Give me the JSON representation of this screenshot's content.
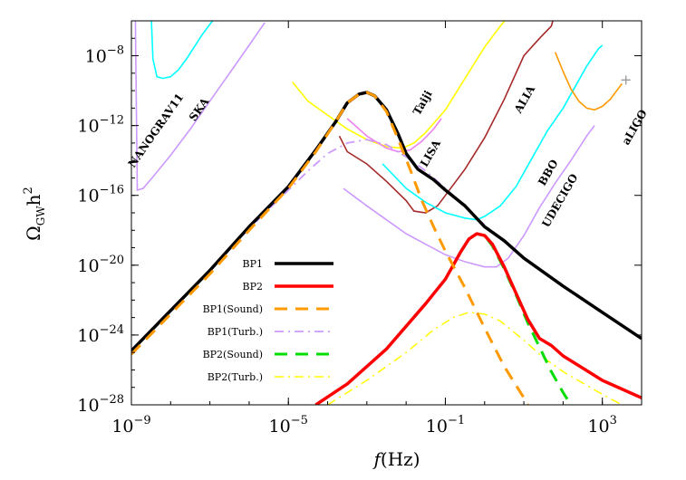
{
  "chart_data": {
    "type": "line",
    "xlabel_var": "f",
    "xlabel_unit": "(Hz)",
    "ylabel_main": "Ω",
    "ylabel_sub": "GW",
    "ylabel_tail": "h",
    "ylabel_sup": "2",
    "xscale": "log",
    "yscale": "log",
    "xlim_log10": [
      -9,
      4
    ],
    "ylim_log10": [
      -28,
      -6
    ],
    "xticks": [
      {
        "base": "10",
        "exp": "−9",
        "log10": -9
      },
      {
        "base": "10",
        "exp": "−5",
        "log10": -5
      },
      {
        "base": "10",
        "exp": "−1",
        "log10": -1
      },
      {
        "base": "10",
        "exp": "3",
        "log10": 3
      }
    ],
    "yticks": [
      {
        "base": "10",
        "exp": "−8",
        "log10": -8
      },
      {
        "base": "10",
        "exp": "−12",
        "log10": -12
      },
      {
        "base": "10",
        "exp": "−16",
        "log10": -16
      },
      {
        "base": "10",
        "exp": "−20",
        "log10": -20
      },
      {
        "base": "10",
        "exp": "−24",
        "log10": -24
      },
      {
        "base": "10",
        "exp": "−28",
        "log10": -28
      }
    ],
    "series": [
      {
        "name": "BP1",
        "color": "#000000",
        "style": "solid",
        "width": 3.5,
        "points_log10": [
          [
            -9,
            -24.9
          ],
          [
            -8,
            -22.6
          ],
          [
            -7,
            -20.3
          ],
          [
            -6,
            -17.8
          ],
          [
            -5,
            -15.5
          ],
          [
            -4.3,
            -13.4
          ],
          [
            -3.8,
            -11.8
          ],
          [
            -3.5,
            -10.7
          ],
          [
            -3.2,
            -10.2
          ],
          [
            -3,
            -10.1
          ],
          [
            -2.8,
            -10.3
          ],
          [
            -2.5,
            -11.1
          ],
          [
            -2.2,
            -12.5
          ],
          [
            -2,
            -13.6
          ],
          [
            -1.7,
            -14.5
          ],
          [
            -1.3,
            -15.1
          ],
          [
            -1,
            -15.7
          ],
          [
            -0.5,
            -16.6
          ],
          [
            0,
            -17.8
          ],
          [
            0.5,
            -18.6
          ],
          [
            1,
            -19.6
          ],
          [
            2,
            -21.2
          ],
          [
            3,
            -22.7
          ],
          [
            4,
            -24.2
          ]
        ]
      },
      {
        "name": "BP2",
        "color": "#ff0000",
        "style": "solid",
        "width": 3.5,
        "points_log10": [
          [
            -4.3,
            -28
          ],
          [
            -3.5,
            -26.8
          ],
          [
            -2.5,
            -24.8
          ],
          [
            -1.5,
            -22.2
          ],
          [
            -1,
            -20.8
          ],
          [
            -0.6,
            -19.2
          ],
          [
            -0.4,
            -18.5
          ],
          [
            -0.2,
            -18.2
          ],
          [
            0,
            -18.3
          ],
          [
            0.2,
            -18.8
          ],
          [
            0.5,
            -20.1
          ],
          [
            0.8,
            -21.6
          ],
          [
            1.1,
            -23.1
          ],
          [
            1.4,
            -24.2
          ],
          [
            1.7,
            -24.6
          ],
          [
            2,
            -25.2
          ],
          [
            3,
            -26.6
          ],
          [
            4,
            -27.6
          ]
        ]
      },
      {
        "name": "BP1(Sound)",
        "color": "#ff9900",
        "style": "dashed",
        "width": 3,
        "points_log10": [
          [
            -9,
            -25.1
          ],
          [
            -8,
            -22.8
          ],
          [
            -7,
            -20.5
          ],
          [
            -6,
            -18
          ],
          [
            -5,
            -15.6
          ],
          [
            -4.3,
            -13.5
          ],
          [
            -3.8,
            -11.8
          ],
          [
            -3.5,
            -10.7
          ],
          [
            -3.2,
            -10.2
          ],
          [
            -3,
            -10.1
          ],
          [
            -2.8,
            -10.3
          ],
          [
            -2.5,
            -11.2
          ],
          [
            -2.2,
            -12.8
          ],
          [
            -1.9,
            -14.5
          ],
          [
            -1.6,
            -16.3
          ],
          [
            -1.3,
            -17.8
          ],
          [
            -1,
            -19.2
          ],
          [
            -0.5,
            -21.3
          ],
          [
            0,
            -23.6
          ],
          [
            0.5,
            -25.8
          ],
          [
            1,
            -27.6
          ],
          [
            1.1,
            -28
          ]
        ]
      },
      {
        "name": "BP1(Turb.)",
        "color": "#cc99ff",
        "style": "dashdot",
        "width": 1.8,
        "points_log10": [
          [
            -9,
            -24.9
          ],
          [
            -8,
            -22.6
          ],
          [
            -7,
            -20.3
          ],
          [
            -6,
            -17.9
          ],
          [
            -5,
            -15.7
          ],
          [
            -4.5,
            -14.6
          ],
          [
            -4,
            -13.6
          ],
          [
            -3.5,
            -13
          ],
          [
            -3,
            -12.8
          ],
          [
            -2.5,
            -13.1
          ],
          [
            -2,
            -13.8
          ],
          [
            -1.5,
            -14.6
          ],
          [
            -1,
            -15.6
          ],
          [
            -0.5,
            -16.6
          ],
          [
            0,
            -17.7
          ],
          [
            0.5,
            -18.6
          ],
          [
            1,
            -19.6
          ],
          [
            2,
            -21.2
          ],
          [
            3,
            -22.7
          ],
          [
            4,
            -24.2
          ]
        ]
      },
      {
        "name": "BP2(Sound)",
        "color": "#00dd00",
        "style": "dashed",
        "width": 3,
        "points_log10": [
          [
            -4.3,
            -28
          ],
          [
            -3.5,
            -26.8
          ],
          [
            -2.5,
            -24.8
          ],
          [
            -1.5,
            -22.2
          ],
          [
            -1,
            -20.8
          ],
          [
            -0.6,
            -19.2
          ],
          [
            -0.4,
            -18.5
          ],
          [
            -0.2,
            -18.2
          ],
          [
            0,
            -18.3
          ],
          [
            0.2,
            -18.9
          ],
          [
            0.5,
            -20.2
          ],
          [
            0.8,
            -21.7
          ],
          [
            1.1,
            -23.3
          ],
          [
            1.4,
            -24.7
          ],
          [
            1.7,
            -26.1
          ],
          [
            2,
            -27.3
          ],
          [
            2.2,
            -28
          ]
        ]
      },
      {
        "name": "BP2(Turb.)",
        "color": "#ffff00",
        "style": "dashdot",
        "width": 1.5,
        "points_log10": [
          [
            -4,
            -28
          ],
          [
            -3,
            -26.6
          ],
          [
            -2,
            -25
          ],
          [
            -1.3,
            -23.7
          ],
          [
            -0.8,
            -23
          ],
          [
            -0.4,
            -22.7
          ],
          [
            0,
            -22.8
          ],
          [
            0.4,
            -23.2
          ],
          [
            1,
            -24.3
          ],
          [
            1.5,
            -25.3
          ],
          [
            2,
            -26.1
          ],
          [
            3,
            -27.4
          ],
          [
            3.5,
            -28
          ]
        ]
      }
    ],
    "sensitivity_curves": [
      {
        "name": "NANOGRAV11",
        "color": "#00ffff",
        "points_log10": [
          [
            -8.5,
            -5.5
          ],
          [
            -8.45,
            -8.2
          ],
          [
            -8.35,
            -9.2
          ],
          [
            -8.2,
            -9.3
          ],
          [
            -8,
            -9.2
          ],
          [
            -7.8,
            -8.8
          ],
          [
            -7.6,
            -8.2
          ],
          [
            -7.4,
            -7.5
          ],
          [
            -7.2,
            -6.8
          ],
          [
            -7.0,
            -6.2
          ],
          [
            -6.9,
            -5.9
          ]
        ]
      },
      {
        "name": "SKA",
        "color": "#cc99ff",
        "points_log10": [
          [
            -8.9,
            -5.5
          ],
          [
            -8.85,
            -15.7
          ],
          [
            -8.7,
            -15.6
          ],
          [
            -8.4,
            -14.8
          ],
          [
            -8,
            -13.7
          ],
          [
            -7.5,
            -12.2
          ],
          [
            -7,
            -10.6
          ],
          [
            -6.5,
            -9
          ],
          [
            -6,
            -7.4
          ],
          [
            -5.6,
            -6.1
          ]
        ]
      },
      {
        "name": "Taiji",
        "color": "#ffff00",
        "points_log10": [
          [
            -4.9,
            -9.5
          ],
          [
            -4.5,
            -10.6
          ],
          [
            -4,
            -11.4
          ],
          [
            -3.5,
            -12.2
          ],
          [
            -3,
            -12.8
          ],
          [
            -2.5,
            -13.2
          ],
          [
            -2.1,
            -13.3
          ],
          [
            -1.8,
            -13
          ],
          [
            -1.5,
            -12.4
          ],
          [
            -1,
            -11.1
          ],
          [
            -0.5,
            -9.3
          ],
          [
            0,
            -7.5
          ],
          [
            0.4,
            -6.3
          ],
          [
            0.7,
            -5.5
          ]
        ]
      },
      {
        "name": "LISA",
        "color": "#ee82ee",
        "points_log10": [
          [
            -3.5,
            -11.6
          ],
          [
            -3,
            -12.6
          ],
          [
            -2.5,
            -13.3
          ],
          [
            -2.2,
            -13.5
          ],
          [
            -1.9,
            -13.4
          ],
          [
            -1.6,
            -12.9
          ],
          [
            -1.3,
            -12.2
          ],
          [
            -1.1,
            -11.6
          ]
        ]
      },
      {
        "name": "ALIA",
        "color": "#a52a2a",
        "points_log10": [
          [
            -3.7,
            -12.6
          ],
          [
            -3.5,
            -13.5
          ],
          [
            -3,
            -14.2
          ],
          [
            -2.5,
            -15.2
          ],
          [
            -2,
            -16.3
          ],
          [
            -1.8,
            -16.9
          ],
          [
            -1.5,
            -17
          ],
          [
            -1.2,
            -16.6
          ],
          [
            -1,
            -16
          ],
          [
            -0.5,
            -14.5
          ],
          [
            0,
            -12.7
          ],
          [
            0.5,
            -10.5
          ],
          [
            0.8,
            -9
          ],
          [
            1,
            -8
          ],
          [
            1.4,
            -7
          ],
          [
            1.7,
            -6.3
          ],
          [
            1.8,
            -5.5
          ]
        ]
      },
      {
        "name": "BBO",
        "color": "#00ffff",
        "points_log10": [
          [
            -2.6,
            -14.2
          ],
          [
            -2.3,
            -14.9
          ],
          [
            -2,
            -15.6
          ],
          [
            -1.5,
            -16.4
          ],
          [
            -1,
            -17
          ],
          [
            -0.5,
            -17.3
          ],
          [
            -0.2,
            -17.4
          ],
          [
            0,
            -17.2
          ],
          [
            0.4,
            -16.6
          ],
          [
            0.8,
            -15.5
          ],
          [
            1.2,
            -13.9
          ],
          [
            1.6,
            -12.3
          ],
          [
            2,
            -11
          ],
          [
            2.3,
            -9.8
          ],
          [
            2.6,
            -8.6
          ],
          [
            2.9,
            -7.6
          ],
          [
            3,
            -7.4
          ]
        ]
      },
      {
        "name": "UDECIGO",
        "color": "#cc99ff",
        "points_log10": [
          [
            -3.6,
            -15.6
          ],
          [
            -3,
            -16.6
          ],
          [
            -2.5,
            -17.4
          ],
          [
            -2,
            -18.2
          ],
          [
            -1.5,
            -18.8
          ],
          [
            -1,
            -19.4
          ],
          [
            -0.5,
            -19.8
          ],
          [
            0,
            -20.1
          ],
          [
            0.3,
            -20.1
          ],
          [
            0.6,
            -19.6
          ],
          [
            1,
            -18.3
          ],
          [
            1.4,
            -16.7
          ],
          [
            1.8,
            -15.3
          ],
          [
            2.2,
            -14
          ],
          [
            2.6,
            -12.6
          ],
          [
            2.8,
            -12.0
          ]
        ]
      },
      {
        "name": "aLIGO",
        "color": "#ff9900",
        "points_log10": [
          [
            1.8,
            -7.8
          ],
          [
            2,
            -8.9
          ],
          [
            2.2,
            -9.9
          ],
          [
            2.4,
            -10.6
          ],
          [
            2.6,
            -11
          ],
          [
            2.8,
            -11.1
          ],
          [
            3,
            -10.9
          ],
          [
            3.2,
            -10.5
          ],
          [
            3.4,
            -9.9
          ],
          [
            3.5,
            -9.6
          ]
        ]
      }
    ],
    "detector_labels": [
      {
        "text": "NANOGRAV11",
        "x": -8.3,
        "y": -12.4,
        "rotate": -55
      },
      {
        "text": "SKA",
        "x": -7.2,
        "y": -11.2,
        "rotate": -55
      },
      {
        "text": "Taiji",
        "x": -1.5,
        "y": -10.8,
        "rotate": -60
      },
      {
        "text": "ALIA",
        "x": 1.1,
        "y": -10.6,
        "rotate": -60
      },
      {
        "text": "LISA",
        "x": -1.3,
        "y": -13.7,
        "rotate": -60
      },
      {
        "text": "BBO",
        "x": 1.7,
        "y": -14.8,
        "rotate": -60
      },
      {
        "text": "UDECIGO",
        "x": 2.0,
        "y": -16.4,
        "rotate": -60
      },
      {
        "text": "aLIGO",
        "x": 3.9,
        "y": -12.2,
        "rotate": -60
      }
    ],
    "legend": {
      "placement": "lower-left",
      "entries": [
        "BP1",
        "BP2",
        "BP1(Sound)",
        "BP1(Turb.)",
        "BP2(Sound)",
        "BP2(Turb.)"
      ]
    },
    "markers": [
      {
        "name": "aLIGO-marker",
        "symbol": "+",
        "color": "#999999",
        "x": 3.6,
        "y": -9.4
      }
    ]
  }
}
